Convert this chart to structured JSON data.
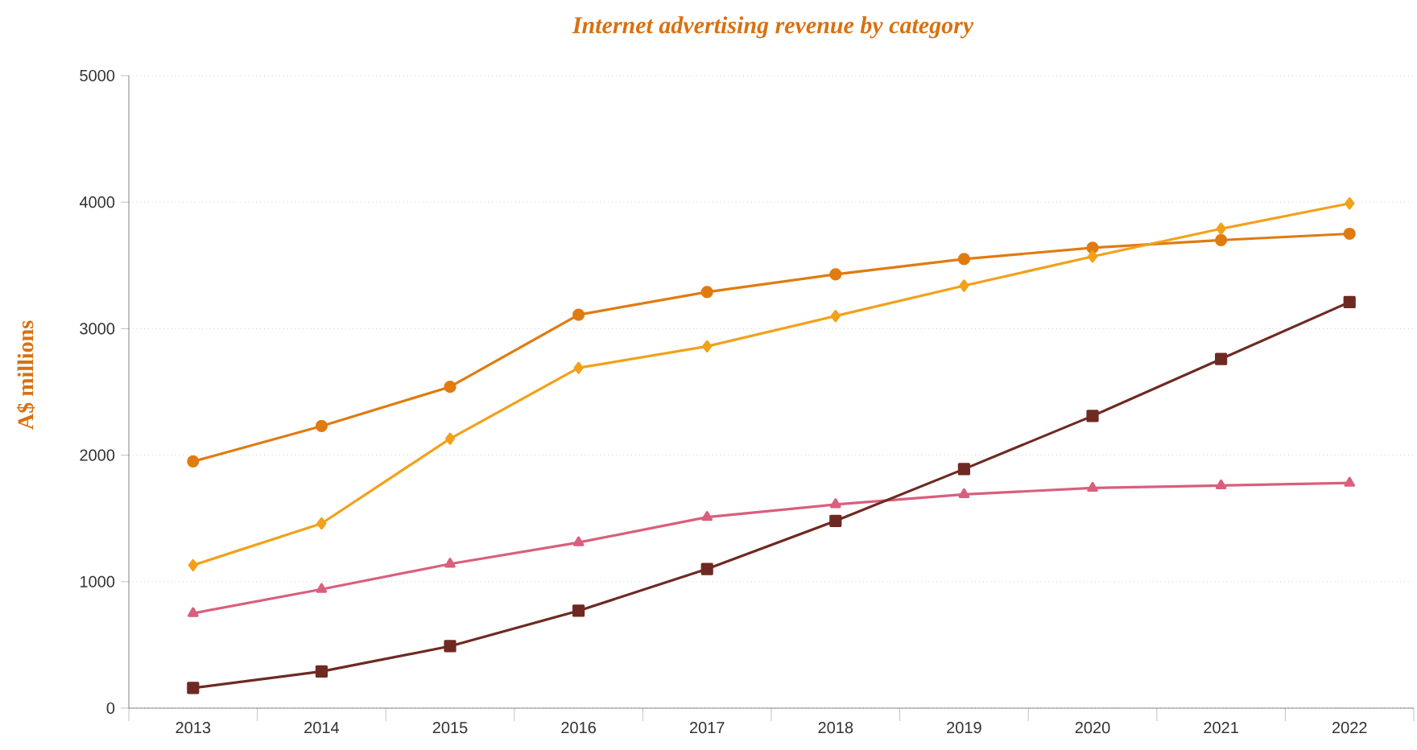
{
  "chart_data": {
    "type": "line",
    "title": "Internet advertising revenue by category",
    "ylabel": "A$ millions",
    "categories": [
      "2013",
      "2014",
      "2015",
      "2016",
      "2017",
      "2018",
      "2019",
      "2020",
      "2021",
      "2022"
    ],
    "series": [
      {
        "color": "#e07b10",
        "marker": "circle",
        "values": [
          1950,
          2230,
          2540,
          3110,
          3290,
          3430,
          3550,
          3640,
          3700,
          3750
        ]
      },
      {
        "color": "#f2a11a",
        "marker": "diamond",
        "values": [
          1130,
          1460,
          2130,
          2690,
          2860,
          3100,
          3340,
          3570,
          3790,
          3990
        ]
      },
      {
        "color": "#d95f7c",
        "marker": "triangle",
        "values": [
          750,
          940,
          1140,
          1310,
          1510,
          1610,
          1690,
          1740,
          1760,
          1780
        ]
      },
      {
        "color": "#6e2a22",
        "marker": "square",
        "values": [
          160,
          290,
          490,
          770,
          1100,
          1480,
          1890,
          2310,
          2760,
          3210
        ]
      }
    ],
    "ylim": [
      0,
      5000
    ],
    "yticks": [
      0,
      1000,
      2000,
      3000,
      4000,
      5000
    ],
    "grid": "y",
    "line_style": "solid"
  }
}
